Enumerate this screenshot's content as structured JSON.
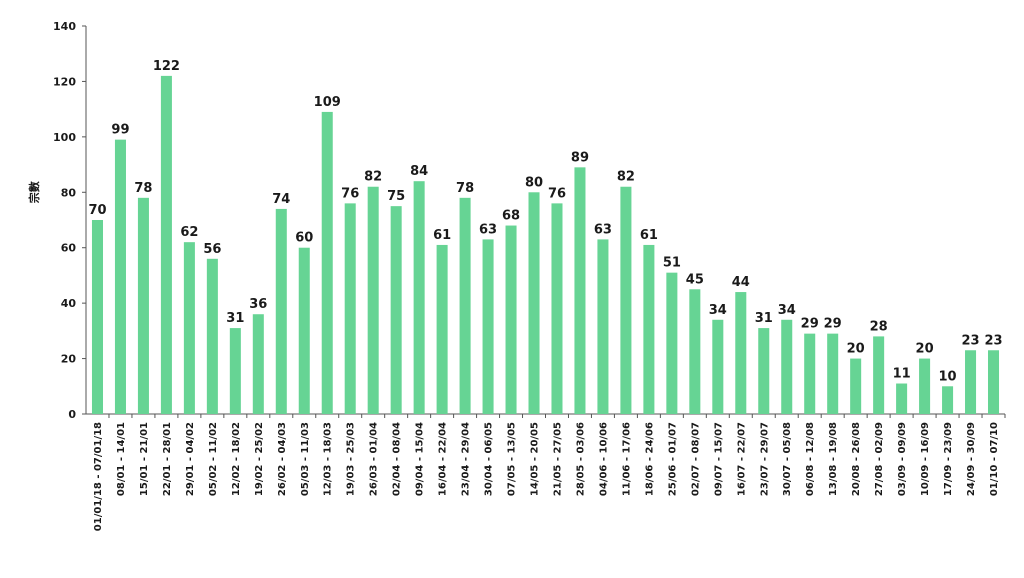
{
  "chart_data": {
    "type": "bar",
    "title": "",
    "xlabel": "",
    "ylabel": "宗數",
    "ylim": [
      0,
      140
    ],
    "yticks": [
      0,
      20,
      40,
      60,
      80,
      100,
      120,
      140
    ],
    "grid": false,
    "legend": "none",
    "bar_color": "#66d494",
    "categories": [
      "01/01/18 - 07/01/18",
      "08/01 - 14/01",
      "15/01 - 21/01",
      "22/01 - 28/01",
      "29/01 - 04/02",
      "05/02 - 11/02",
      "12/02 - 18/02",
      "19/02 - 25/02",
      "26/02 - 04/03",
      "05/03 - 11/03",
      "12/03 - 18/03",
      "19/03 - 25/03",
      "26/03 - 01/04",
      "02/04 - 08/04",
      "09/04 - 15/04",
      "16/04 - 22/04",
      "23/04 - 29/04",
      "30/04 - 06/05",
      "07/05 - 13/05",
      "14/05 - 20/05",
      "21/05 - 27/05",
      "28/05 - 03/06",
      "04/06 - 10/06",
      "11/06 - 17/06",
      "18/06 - 24/06",
      "25/06 - 01/07",
      "02/07 - 08/07",
      "09/07 - 15/07",
      "16/07 - 22/07",
      "23/07 - 29/07",
      "30/07 - 05/08",
      "06/08 - 12/08",
      "13/08 - 19/08",
      "20/08 - 26/08",
      "27/08 - 02/09",
      "03/09 - 09/09",
      "10/09 - 16/09",
      "17/09 - 23/09",
      "24/09 - 30/09",
      "01/10 - 07/10"
    ],
    "values": [
      70,
      99,
      78,
      122,
      62,
      56,
      31,
      36,
      74,
      60,
      109,
      76,
      82,
      75,
      84,
      61,
      78,
      63,
      68,
      80,
      76,
      89,
      63,
      82,
      61,
      51,
      45,
      34,
      44,
      31,
      34,
      29,
      29,
      20,
      28,
      11,
      20,
      10,
      23,
      23
    ]
  }
}
